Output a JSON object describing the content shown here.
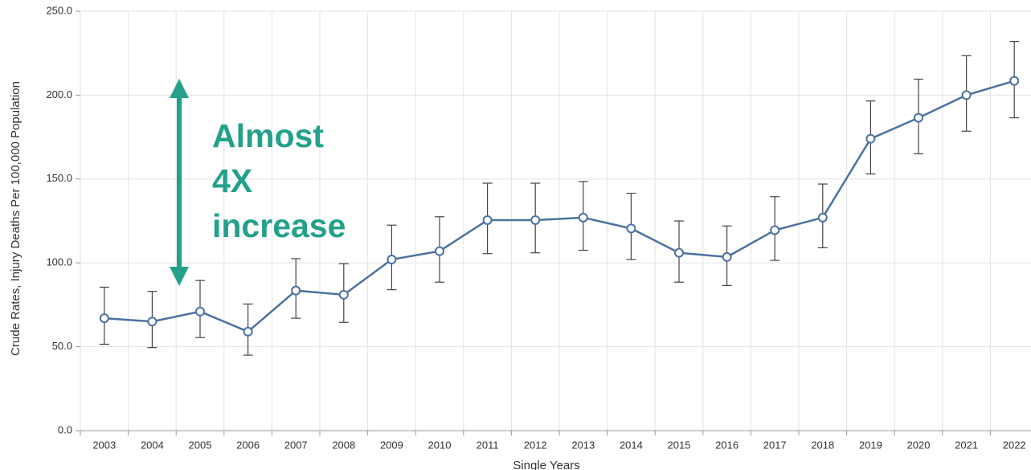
{
  "chart_data": {
    "type": "line",
    "y_label": "Crude Rates, Injury Deaths Per 100,000 Population",
    "x_label": "Single Years",
    "annotation": [
      "Almost",
      "4X",
      "increase"
    ],
    "categories": [
      "2003",
      "2004",
      "2005",
      "2006",
      "2007",
      "2008",
      "2009",
      "2010",
      "2011",
      "2012",
      "2013",
      "2014",
      "2015",
      "2016",
      "2017",
      "2018",
      "2019",
      "2020",
      "2021",
      "2022"
    ],
    "series": [
      {
        "color": "#4a72a0",
        "values": [
          67,
          65,
          71,
          59,
          83.5,
          81,
          102,
          107,
          125.5,
          125.5,
          127,
          120.5,
          106,
          103.5,
          119.5,
          127,
          174,
          186.5,
          200,
          208.5
        ],
        "upper": [
          85.5,
          83,
          89.5,
          75.5,
          102.5,
          99.5,
          122.5,
          127.5,
          147.5,
          147.5,
          148.5,
          141.5,
          125,
          122,
          139.5,
          147,
          196.5,
          209.5,
          223.5,
          232
        ],
        "lower": [
          51.5,
          49.5,
          55.5,
          45,
          67,
          64.5,
          84,
          88.5,
          105.5,
          106,
          107.5,
          102,
          88.5,
          86.5,
          101.5,
          109,
          153,
          165,
          178.5,
          186.5
        ]
      }
    ],
    "ylim": [
      0,
      250
    ],
    "yticks": [
      {
        "value": 0,
        "label": "0.0"
      },
      {
        "value": 50,
        "label": "50.0"
      },
      {
        "value": 100,
        "label": "100.0"
      },
      {
        "value": 150,
        "label": "150.0"
      },
      {
        "value": 200,
        "label": "200.0"
      },
      {
        "value": 250,
        "label": "250.0"
      }
    ],
    "grid": true
  }
}
